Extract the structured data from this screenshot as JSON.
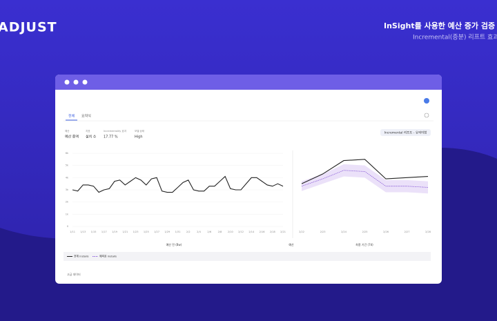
{
  "header": {
    "logo": "ADJUST",
    "title": "InSight를 사용한 예산 증가 검증 테",
    "subtitle": "Incremental(증분) 리프트 효과"
  },
  "tabs": [
    "전체",
    "요약식"
  ],
  "metrics": [
    {
      "label": "예산",
      "value": "예산 증액"
    },
    {
      "label": "지표",
      "value": "설치 수"
    },
    {
      "label": "Incrementality 효과",
      "value": "17.77 %"
    },
    {
      "label": "모델 상태",
      "value": "High"
    }
  ],
  "badge": "Incremental 리프트 - 유의미함",
  "axis_labels": [
    "예산 전 (Bw)",
    "예산",
    "최종 기간 (7d)"
  ],
  "footer": "고급 데이터",
  "chart_data": [
    {
      "type": "line",
      "color": "#222222",
      "grid": true,
      "categories": [
        "1/11",
        null,
        "1/13",
        null,
        "1/15",
        null,
        "1/17",
        null,
        "1/19",
        null,
        "1/21",
        null,
        "1/23",
        null,
        "1/25",
        null,
        "1/27",
        null,
        "1/29",
        null,
        "1/31",
        null,
        "2/2",
        null,
        "2/4",
        null,
        "2/6",
        null,
        "2/8",
        null,
        "2/10",
        null,
        "2/12",
        null,
        "2/14",
        null,
        "2/16",
        null,
        "2/18",
        null,
        "2/21"
      ],
      "values": [
        3000,
        2900,
        3400,
        3400,
        3300,
        2800,
        3000,
        3100,
        3700,
        3800,
        3400,
        3700,
        4000,
        3800,
        3400,
        3900,
        4000,
        2900,
        2800,
        2800,
        3200,
        3600,
        3800,
        3000,
        2900,
        2900,
        3300,
        3300,
        3700,
        4100,
        3100,
        3000,
        3000,
        3500,
        4000,
        4000,
        3700,
        3400,
        3300,
        3500,
        3300
      ],
      "ylim": [
        0,
        6000
      ],
      "yticks": [
        0,
        {
          "value": 1000,
          "label": "1k"
        },
        {
          "value": 2000,
          "label": "2k"
        },
        {
          "value": 3000,
          "label": "3k"
        },
        {
          "value": 4000,
          "label": "4k"
        },
        {
          "value": 5000,
          "label": "5k"
        },
        {
          "value": 6000,
          "label": "6k"
        }
      ]
    },
    {
      "type": "line",
      "categories": [
        "2/22",
        "2/23",
        "2/24",
        "2/25",
        "2/26",
        "2/27",
        "2/28"
      ],
      "series": [
        {
          "name": "전체 installs",
          "color": "#222222",
          "values": [
            3500,
            4300,
            5400,
            5500,
            3900,
            4000,
            4100
          ]
        },
        {
          "name": "예측된 installs",
          "color": "#8a5cd8",
          "values": [
            3300,
            3900,
            4600,
            4500,
            3300,
            3300,
            3200
          ]
        }
      ],
      "band": {
        "color": "#e6d9f7",
        "upper": [
          3700,
          4300,
          5100,
          5000,
          3800,
          3800,
          3700
        ],
        "lower": [
          2900,
          3500,
          4100,
          4000,
          2800,
          2800,
          2700
        ]
      },
      "ylim": [
        0,
        6000
      ]
    }
  ]
}
